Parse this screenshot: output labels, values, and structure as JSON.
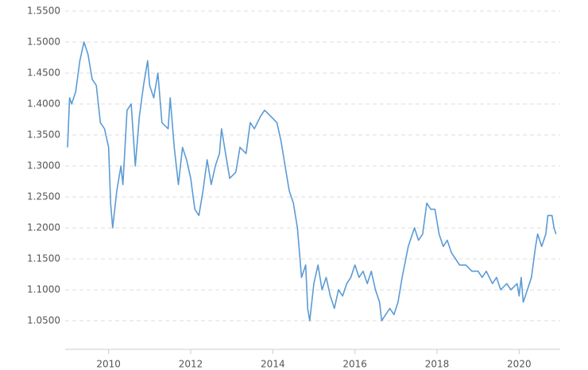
{
  "chart_data": {
    "type": "line",
    "x": [
      2009.0,
      2009.05,
      2009.1,
      2009.2,
      2009.3,
      2009.4,
      2009.5,
      2009.6,
      2009.7,
      2009.8,
      2009.9,
      2010.0,
      2010.05,
      2010.1,
      2010.2,
      2010.3,
      2010.35,
      2010.45,
      2010.55,
      2010.65,
      2010.75,
      2010.85,
      2010.95,
      2011.0,
      2011.1,
      2011.2,
      2011.3,
      2011.45,
      2011.5,
      2011.6,
      2011.7,
      2011.8,
      2011.9,
      2012.0,
      2012.1,
      2012.2,
      2012.3,
      2012.4,
      2012.5,
      2012.6,
      2012.7,
      2012.75,
      2012.85,
      2012.95,
      2013.1,
      2013.2,
      2013.35,
      2013.45,
      2013.55,
      2013.7,
      2013.8,
      2013.95,
      2014.1,
      2014.2,
      2014.3,
      2014.4,
      2014.5,
      2014.6,
      2014.7,
      2014.8,
      2014.85,
      2014.9,
      2015.0,
      2015.1,
      2015.2,
      2015.3,
      2015.4,
      2015.5,
      2015.6,
      2015.7,
      2015.8,
      2015.9,
      2016.0,
      2016.1,
      2016.2,
      2016.3,
      2016.4,
      2016.5,
      2016.6,
      2016.65,
      2016.75,
      2016.85,
      2016.95,
      2017.05,
      2017.15,
      2017.3,
      2017.4,
      2017.45,
      2017.55,
      2017.65,
      2017.75,
      2017.85,
      2017.95,
      2018.05,
      2018.15,
      2018.25,
      2018.35,
      2018.45,
      2018.55,
      2018.7,
      2018.85,
      2019.0,
      2019.1,
      2019.2,
      2019.35,
      2019.45,
      2019.55,
      2019.7,
      2019.8,
      2019.95,
      2020.0,
      2020.05,
      2020.1,
      2020.2,
      2020.3,
      2020.4,
      2020.45,
      2020.55,
      2020.65,
      2020.7,
      2020.8,
      2020.85,
      2020.9
    ],
    "series": [
      {
        "color": "#5b9bd5",
        "values": [
          1.33,
          1.41,
          1.4,
          1.42,
          1.47,
          1.5,
          1.48,
          1.44,
          1.43,
          1.37,
          1.36,
          1.33,
          1.24,
          1.2,
          1.26,
          1.3,
          1.27,
          1.39,
          1.4,
          1.3,
          1.38,
          1.43,
          1.47,
          1.43,
          1.41,
          1.45,
          1.37,
          1.36,
          1.41,
          1.33,
          1.27,
          1.33,
          1.31,
          1.28,
          1.23,
          1.22,
          1.26,
          1.31,
          1.27,
          1.3,
          1.32,
          1.36,
          1.32,
          1.28,
          1.29,
          1.33,
          1.32,
          1.37,
          1.36,
          1.38,
          1.39,
          1.38,
          1.37,
          1.34,
          1.3,
          1.26,
          1.24,
          1.2,
          1.12,
          1.14,
          1.07,
          1.05,
          1.11,
          1.14,
          1.1,
          1.12,
          1.09,
          1.07,
          1.1,
          1.09,
          1.11,
          1.12,
          1.14,
          1.12,
          1.13,
          1.11,
          1.13,
          1.1,
          1.08,
          1.05,
          1.06,
          1.07,
          1.06,
          1.08,
          1.12,
          1.17,
          1.19,
          1.2,
          1.18,
          1.19,
          1.24,
          1.23,
          1.23,
          1.19,
          1.17,
          1.18,
          1.16,
          1.15,
          1.14,
          1.14,
          1.13,
          1.13,
          1.12,
          1.13,
          1.11,
          1.12,
          1.1,
          1.11,
          1.1,
          1.11,
          1.09,
          1.12,
          1.08,
          1.1,
          1.12,
          1.17,
          1.19,
          1.17,
          1.19,
          1.22,
          1.22,
          1.2,
          1.19
        ]
      }
    ],
    "xlim": [
      2009,
      2021
    ],
    "xticks": [
      2010,
      2012,
      2014,
      2016,
      2018,
      2020
    ],
    "ylim": [
      1.0,
      1.55
    ],
    "yticks": [
      {
        "value": 1.05,
        "label": "1.0500"
      },
      {
        "value": 1.1,
        "label": "1.1000"
      },
      {
        "value": 1.15,
        "label": "1.1500"
      },
      {
        "value": 1.2,
        "label": "1.2000"
      },
      {
        "value": 1.25,
        "label": "1.2500"
      },
      {
        "value": 1.3,
        "label": "1.3000"
      },
      {
        "value": 1.35,
        "label": "1.3500"
      },
      {
        "value": 1.4,
        "label": "1.4000"
      },
      {
        "value": 1.45,
        "label": "1.4500"
      },
      {
        "value": 1.5,
        "label": "1.5000"
      },
      {
        "value": 1.55,
        "label": "1.5500"
      }
    ],
    "grid": true
  }
}
